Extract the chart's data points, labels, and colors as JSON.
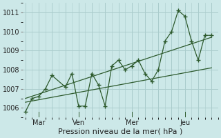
{
  "background_color": "#cce8e8",
  "grid_color": "#aacccc",
  "line_color": "#2d5a2d",
  "title": "Pression niveau de la mer( hPa )",
  "ylim": [
    1005.5,
    1011.5
  ],
  "yticks": [
    1006,
    1007,
    1008,
    1009,
    1010,
    1011
  ],
  "xtick_labels": [
    "Mar",
    "Ven",
    "Mer",
    "Jeu"
  ],
  "xtick_positions": [
    1,
    4,
    8,
    12
  ],
  "vline_positions": [
    1,
    4,
    8,
    12
  ],
  "main_x": [
    0,
    0.5,
    1.0,
    1.5,
    2.0,
    3.0,
    3.5,
    4.0,
    4.5,
    5.0,
    5.5,
    6.0,
    6.5,
    7.0,
    7.5,
    8.0,
    8.5,
    9.0,
    9.5,
    10.0,
    10.5,
    11.0,
    11.5,
    12.0,
    12.5,
    13.0,
    13.5,
    14.0
  ],
  "main_y": [
    1005.8,
    1006.5,
    1006.6,
    1007.0,
    1007.7,
    1007.1,
    1007.8,
    1006.1,
    1006.1,
    1007.8,
    1007.2,
    1006.1,
    1008.2,
    1008.5,
    1008.0,
    1008.2,
    1008.5,
    1007.8,
    1007.4,
    1008.0,
    1009.5,
    1010.0,
    1011.1,
    1010.8,
    1009.5,
    1008.5,
    1009.8,
    1009.8
  ],
  "trend1_x": [
    0,
    14
  ],
  "trend1_y": [
    1006.5,
    1009.7
  ],
  "trend2_x": [
    0,
    14
  ],
  "trend2_y": [
    1006.3,
    1008.1
  ],
  "xlim": [
    -0.2,
    14.5
  ]
}
